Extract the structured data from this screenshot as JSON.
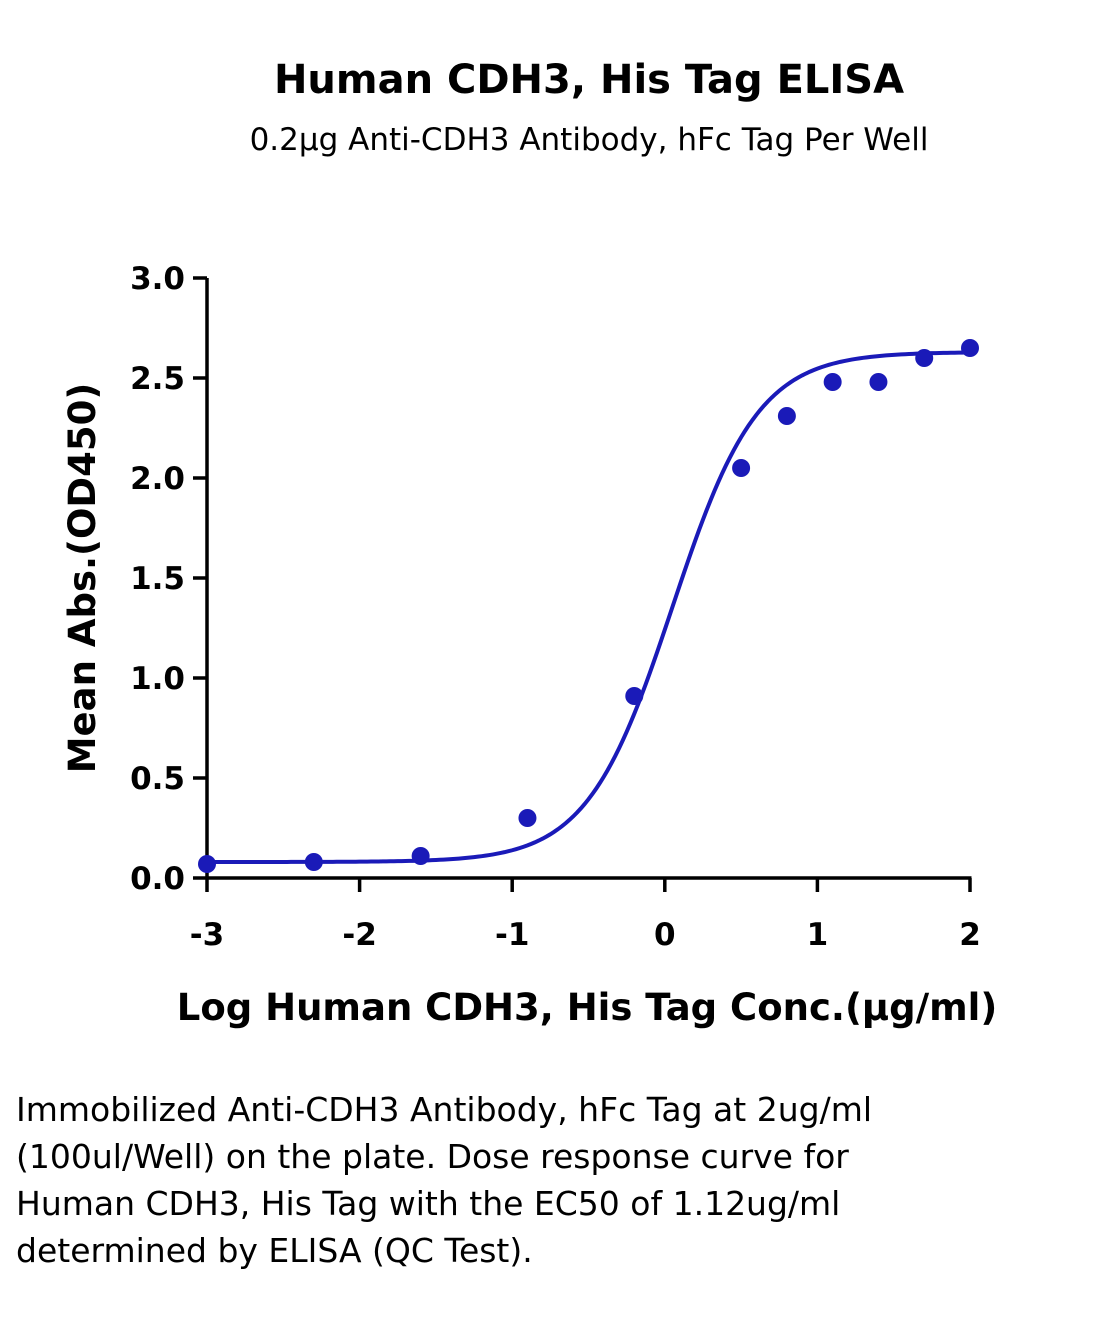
{
  "chart_data": {
    "type": "scatter",
    "title": "Human CDH3, His Tag ELISA",
    "subtitle": "0.2μg Anti-CDH3 Antibody, hFc Tag Per Well",
    "xlabel": "Log Human CDH3, His Tag Conc.(μg/ml)",
    "ylabel": "Mean Abs.(OD450)",
    "xlim": [
      -3,
      2
    ],
    "ylim": [
      0,
      3
    ],
    "xticks": [
      -3,
      -2,
      -1,
      0,
      1,
      2
    ],
    "xtick_labels": [
      "-3",
      "-2",
      "-1",
      "0",
      "1",
      "2"
    ],
    "yticks": [
      0,
      0.5,
      1,
      1.5,
      2,
      2.5,
      3
    ],
    "ytick_labels": [
      "0.0",
      "0.5",
      "1.0",
      "1.5",
      "2.0",
      "2.5",
      "3.0"
    ],
    "grid": false,
    "series": [
      {
        "x": [
          -3.0,
          -2.3,
          -1.6,
          -0.9,
          -0.2,
          0.5,
          0.8,
          1.1,
          1.4,
          1.7,
          2.0
        ],
        "y": [
          0.07,
          0.08,
          0.11,
          0.3,
          0.91,
          2.05,
          2.31,
          2.48,
          2.48,
          2.6,
          2.65
        ],
        "color": "#1a1ab8"
      }
    ],
    "fit_curve": {
      "model": "4PL",
      "bottom": 0.08,
      "top": 2.63,
      "logEC50": 0.05,
      "hill": 1.55,
      "color": "#1a1ab8"
    }
  },
  "caption": "Immobilized Anti-CDH3 Antibody, hFc Tag at 2ug/ml (100ul/Well) on the plate. Dose response curve for Human CDH3, His Tag with the EC50 of 1.12ug/ml determined by ELISA (QC Test)."
}
